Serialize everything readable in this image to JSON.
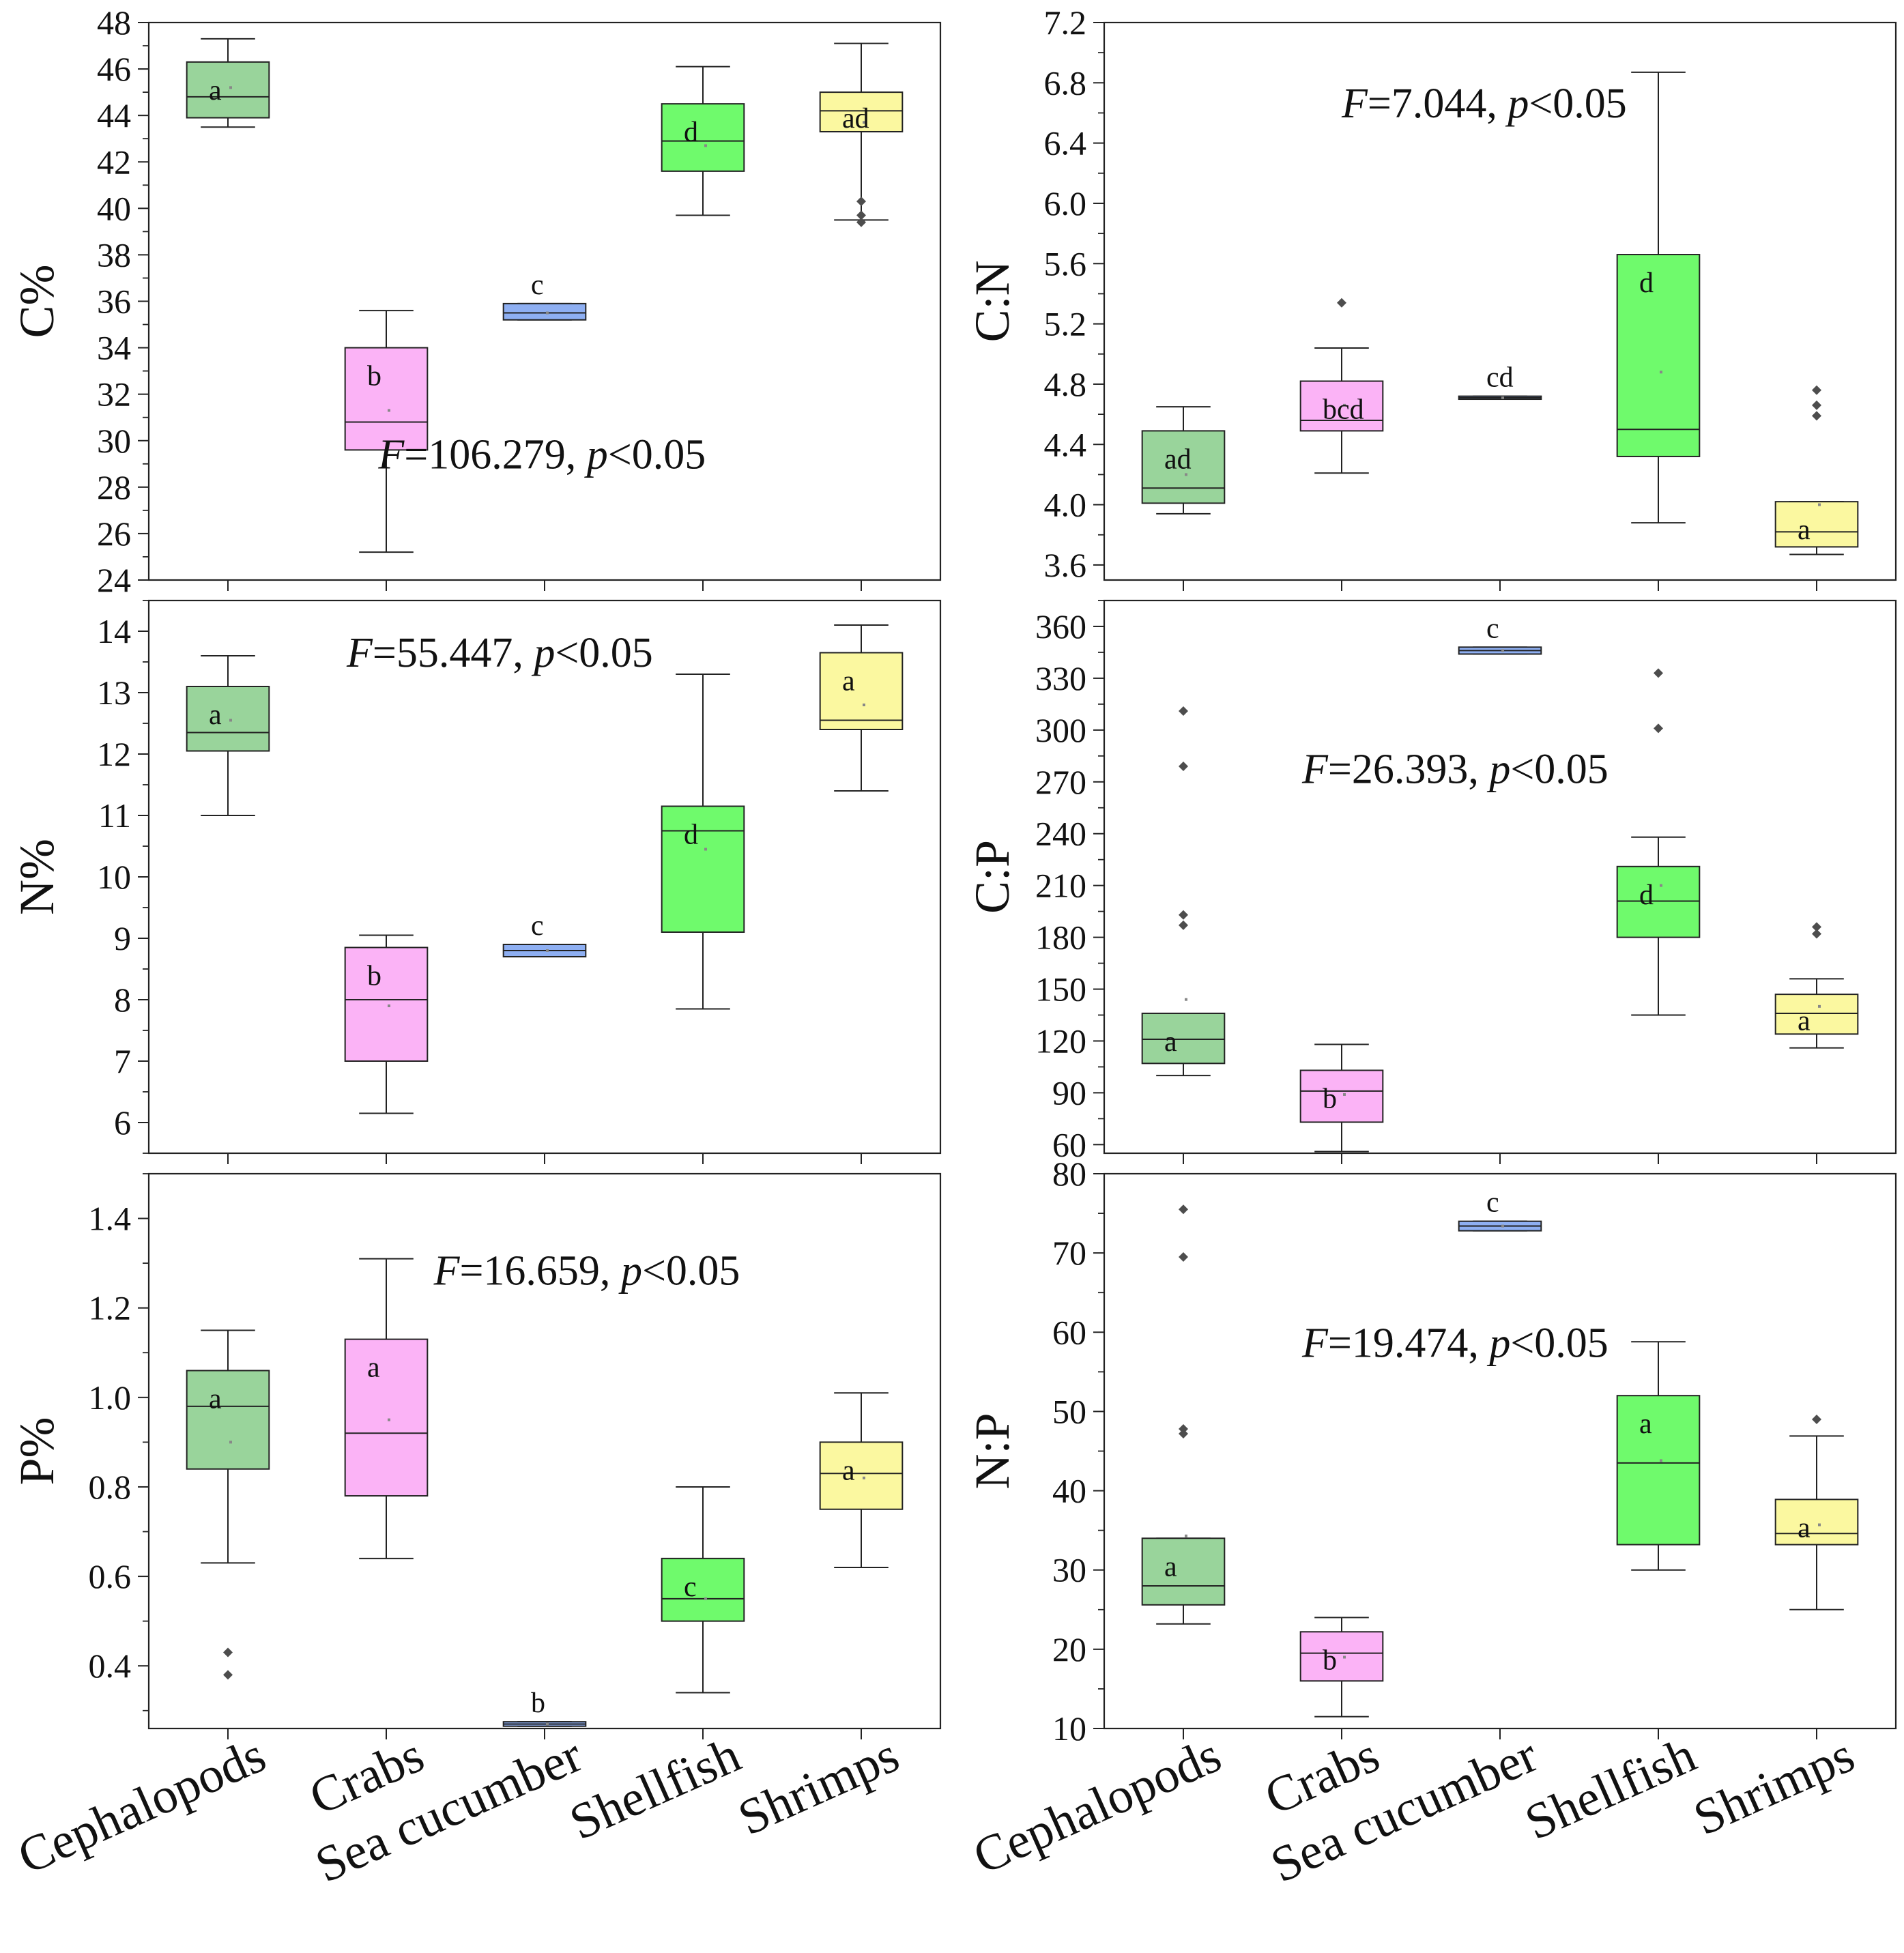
{
  "categories": [
    "Cephalopods",
    "Crabs",
    "Sea cucumber",
    "Shellfish",
    "Shrimps"
  ],
  "colors": {
    "Cephalopods": "#99d49b",
    "Crabs": "#fbb3f6",
    "Sea cucumber": "#8eaff2",
    "Shellfish": "#6ffa6c",
    "Shrimps": "#fbf8a0",
    "outlier": "#4d4d4d",
    "axis": "#222222"
  },
  "chart_data": [
    {
      "id": "c-pct",
      "type": "box",
      "ylabel": "C%",
      "ylim": [
        24,
        48
      ],
      "yticks": [
        24,
        26,
        28,
        30,
        32,
        34,
        36,
        38,
        40,
        42,
        44,
        46,
        48
      ],
      "tick_decimals": 0,
      "stat": {
        "F_label": "F",
        "F_rest": "=106.279, ",
        "p_label": "p",
        "p_rest": "<0.05"
      },
      "stat_pos": "lower-right",
      "boxes": [
        {
          "category": "Cephalopods",
          "whisker_low": 43.5,
          "q1": 43.9,
          "median": 44.8,
          "q3": 46.3,
          "whisker_high": 47.3,
          "mean": 45.2,
          "letter": "a",
          "outliers": []
        },
        {
          "category": "Crabs",
          "whisker_low": 25.2,
          "q1": 29.6,
          "median": 30.8,
          "q3": 34.0,
          "whisker_high": 35.6,
          "mean": 31.3,
          "letter": "b",
          "outliers": []
        },
        {
          "category": "Sea cucumber",
          "whisker_low": 35.2,
          "q1": 35.2,
          "median": 35.5,
          "q3": 35.9,
          "whisker_high": 35.9,
          "mean": 35.5,
          "letter": "c",
          "outliers": []
        },
        {
          "category": "Shellfish",
          "whisker_low": 39.7,
          "q1": 41.6,
          "median": 42.9,
          "q3": 44.5,
          "whisker_high": 46.1,
          "mean": 42.7,
          "letter": "d",
          "outliers": []
        },
        {
          "category": "Shrimps",
          "whisker_low": 39.5,
          "q1": 43.3,
          "median": 44.2,
          "q3": 45.0,
          "whisker_high": 47.1,
          "mean": 43.7,
          "letter": "ad",
          "outliers": [
            40.3,
            39.7,
            39.4
          ]
        }
      ]
    },
    {
      "id": "c-n",
      "type": "box",
      "ylabel": "C:N",
      "ylim": [
        3.5,
        7.2
      ],
      "yticks": [
        3.6,
        4.0,
        4.4,
        4.8,
        5.2,
        5.6,
        6.0,
        6.4,
        6.8,
        7.2
      ],
      "tick_decimals": 1,
      "stat": {
        "F_label": "F",
        "F_rest": "=7.044, ",
        "p_label": "p",
        "p_rest": "<0.05"
      },
      "stat_pos": "top-left",
      "boxes": [
        {
          "category": "Cephalopods",
          "whisker_low": 3.94,
          "q1": 4.01,
          "median": 4.11,
          "q3": 4.49,
          "whisker_high": 4.65,
          "mean": 4.2,
          "letter": "ad",
          "outliers": []
        },
        {
          "category": "Crabs",
          "whisker_low": 4.21,
          "q1": 4.49,
          "median": 4.56,
          "q3": 4.82,
          "whisker_high": 5.04,
          "mean": 4.66,
          "letter": "bcd",
          "outliers": [
            5.34
          ]
        },
        {
          "category": "Sea cucumber",
          "whisker_low": 4.7,
          "q1": 4.7,
          "median": 4.71,
          "q3": 4.72,
          "whisker_high": 4.72,
          "mean": 4.71,
          "letter": "cd",
          "outliers": []
        },
        {
          "category": "Shellfish",
          "whisker_low": 3.88,
          "q1": 4.32,
          "median": 4.5,
          "q3": 5.66,
          "whisker_high": 6.87,
          "mean": 4.88,
          "letter": "d",
          "outliers": []
        },
        {
          "category": "Shrimps",
          "whisker_low": 3.67,
          "q1": 3.72,
          "median": 3.82,
          "q3": 4.02,
          "whisker_high": 4.02,
          "mean": 4.0,
          "letter": "a",
          "outliers": [
            4.76,
            4.66,
            4.59
          ]
        }
      ]
    },
    {
      "id": "n-pct",
      "type": "box",
      "ylabel": "N%",
      "ylim": [
        5.5,
        14.5
      ],
      "yticks": [
        6,
        7,
        8,
        9,
        10,
        11,
        12,
        13,
        14
      ],
      "tick_decimals": 0,
      "stat": {
        "F_label": "F",
        "F_rest": "=55.447, ",
        "p_label": "p",
        "p_rest": "<0.05"
      },
      "stat_pos": "top-center",
      "boxes": [
        {
          "category": "Cephalopods",
          "whisker_low": 11.0,
          "q1": 12.05,
          "median": 12.35,
          "q3": 13.1,
          "whisker_high": 13.6,
          "mean": 12.55,
          "letter": "a",
          "outliers": []
        },
        {
          "category": "Crabs",
          "whisker_low": 6.15,
          "q1": 7.0,
          "median": 8.0,
          "q3": 8.85,
          "whisker_high": 9.05,
          "mean": 7.9,
          "letter": "b",
          "outliers": []
        },
        {
          "category": "Sea cucumber",
          "whisker_low": 8.7,
          "q1": 8.7,
          "median": 8.8,
          "q3": 8.9,
          "whisker_high": 8.9,
          "mean": 8.8,
          "letter": "c",
          "outliers": []
        },
        {
          "category": "Shellfish",
          "whisker_low": 7.85,
          "q1": 9.1,
          "median": 10.75,
          "q3": 11.15,
          "whisker_high": 13.3,
          "mean": 10.45,
          "letter": "d",
          "outliers": []
        },
        {
          "category": "Shrimps",
          "whisker_low": 11.4,
          "q1": 12.4,
          "median": 12.55,
          "q3": 13.65,
          "whisker_high": 14.1,
          "mean": 12.8,
          "letter": "a",
          "outliers": []
        }
      ]
    },
    {
      "id": "c-p",
      "type": "box",
      "ylabel": "C:P",
      "ylim": [
        55,
        375
      ],
      "yticks": [
        60,
        90,
        120,
        150,
        180,
        210,
        240,
        270,
        300,
        330,
        360
      ],
      "tick_decimals": 0,
      "stat": {
        "F_label": "F",
        "F_rest": "=26.393, ",
        "p_label": "p",
        "p_rest": "<0.05"
      },
      "stat_pos": "mid-left",
      "boxes": [
        {
          "category": "Cephalopods",
          "whisker_low": 100,
          "q1": 107,
          "median": 121,
          "q3": 136,
          "whisker_high": 136,
          "mean": 144,
          "letter": "a",
          "outliers": [
            311,
            279,
            193,
            187
          ]
        },
        {
          "category": "Crabs",
          "whisker_low": 56,
          "q1": 73,
          "median": 91,
          "q3": 103,
          "whisker_high": 118,
          "mean": 89,
          "letter": "b",
          "outliers": []
        },
        {
          "category": "Sea cucumber",
          "whisker_low": 344,
          "q1": 344,
          "median": 346,
          "q3": 348,
          "whisker_high": 348,
          "mean": 346,
          "letter": "c",
          "outliers": []
        },
        {
          "category": "Shellfish",
          "whisker_low": 135,
          "q1": 180,
          "median": 201,
          "q3": 221,
          "whisker_high": 238,
          "mean": 210,
          "letter": "d",
          "outliers": [
            333,
            301
          ]
        },
        {
          "category": "Shrimps",
          "whisker_low": 116,
          "q1": 124,
          "median": 136,
          "q3": 147,
          "whisker_high": 156,
          "mean": 140,
          "letter": "a",
          "outliers": [
            186,
            182
          ]
        }
      ]
    },
    {
      "id": "p-pct",
      "type": "box",
      "ylabel": "P%",
      "ylim": [
        0.26,
        1.5
      ],
      "yticks": [
        0.4,
        0.6,
        0.8,
        1.0,
        1.2,
        1.4
      ],
      "tick_decimals": 1,
      "stat": {
        "F_label": "F",
        "F_rest": "=16.659, ",
        "p_label": "p",
        "p_rest": "<0.05"
      },
      "stat_pos": "top-right",
      "boxes": [
        {
          "category": "Cephalopods",
          "whisker_low": 0.63,
          "q1": 0.84,
          "median": 0.98,
          "q3": 1.06,
          "whisker_high": 1.15,
          "mean": 0.9,
          "letter": "a",
          "outliers": [
            0.43,
            0.38
          ]
        },
        {
          "category": "Crabs",
          "whisker_low": 0.64,
          "q1": 0.78,
          "median": 0.92,
          "q3": 1.13,
          "whisker_high": 1.31,
          "mean": 0.95,
          "letter": "a",
          "outliers": []
        },
        {
          "category": "Sea cucumber",
          "whisker_low": 0.265,
          "q1": 0.265,
          "median": 0.27,
          "q3": 0.275,
          "whisker_high": 0.275,
          "mean": 0.27,
          "letter": "b",
          "outliers": []
        },
        {
          "category": "Shellfish",
          "whisker_low": 0.34,
          "q1": 0.5,
          "median": 0.55,
          "q3": 0.64,
          "whisker_high": 0.8,
          "mean": 0.55,
          "letter": "c",
          "outliers": []
        },
        {
          "category": "Shrimps",
          "whisker_low": 0.62,
          "q1": 0.75,
          "median": 0.83,
          "q3": 0.9,
          "whisker_high": 1.01,
          "mean": 0.82,
          "letter": "a",
          "outliers": []
        }
      ]
    },
    {
      "id": "n-p",
      "type": "box",
      "ylabel": "N:P",
      "ylim": [
        10,
        80
      ],
      "yticks": [
        10,
        20,
        30,
        40,
        50,
        60,
        70,
        80
      ],
      "tick_decimals": 0,
      "stat": {
        "F_label": "F",
        "F_rest": "=19.474, ",
        "p_label": "p",
        "p_rest": "<0.05"
      },
      "stat_pos": "mid-left",
      "boxes": [
        {
          "category": "Cephalopods",
          "whisker_low": 23.2,
          "q1": 25.6,
          "median": 28.0,
          "q3": 34.0,
          "whisker_high": 34.0,
          "mean": 34.3,
          "letter": "a",
          "outliers": [
            75.5,
            69.5,
            47.8,
            47.2
          ]
        },
        {
          "category": "Crabs",
          "whisker_low": 11.5,
          "q1": 16.0,
          "median": 19.5,
          "q3": 22.2,
          "whisker_high": 24.0,
          "mean": 19.0,
          "letter": "b",
          "outliers": []
        },
        {
          "category": "Sea cucumber",
          "whisker_low": 72.8,
          "q1": 72.8,
          "median": 73.4,
          "q3": 74.0,
          "whisker_high": 74.0,
          "mean": 73.4,
          "letter": "c",
          "outliers": []
        },
        {
          "category": "Shellfish",
          "whisker_low": 30.0,
          "q1": 33.2,
          "median": 43.5,
          "q3": 52.0,
          "whisker_high": 58.8,
          "mean": 43.8,
          "letter": "a",
          "outliers": []
        },
        {
          "category": "Shrimps",
          "whisker_low": 25.0,
          "q1": 33.2,
          "median": 34.6,
          "q3": 38.9,
          "whisker_high": 46.9,
          "mean": 35.7,
          "letter": "a",
          "outliers": [
            49.0
          ]
        }
      ]
    }
  ]
}
